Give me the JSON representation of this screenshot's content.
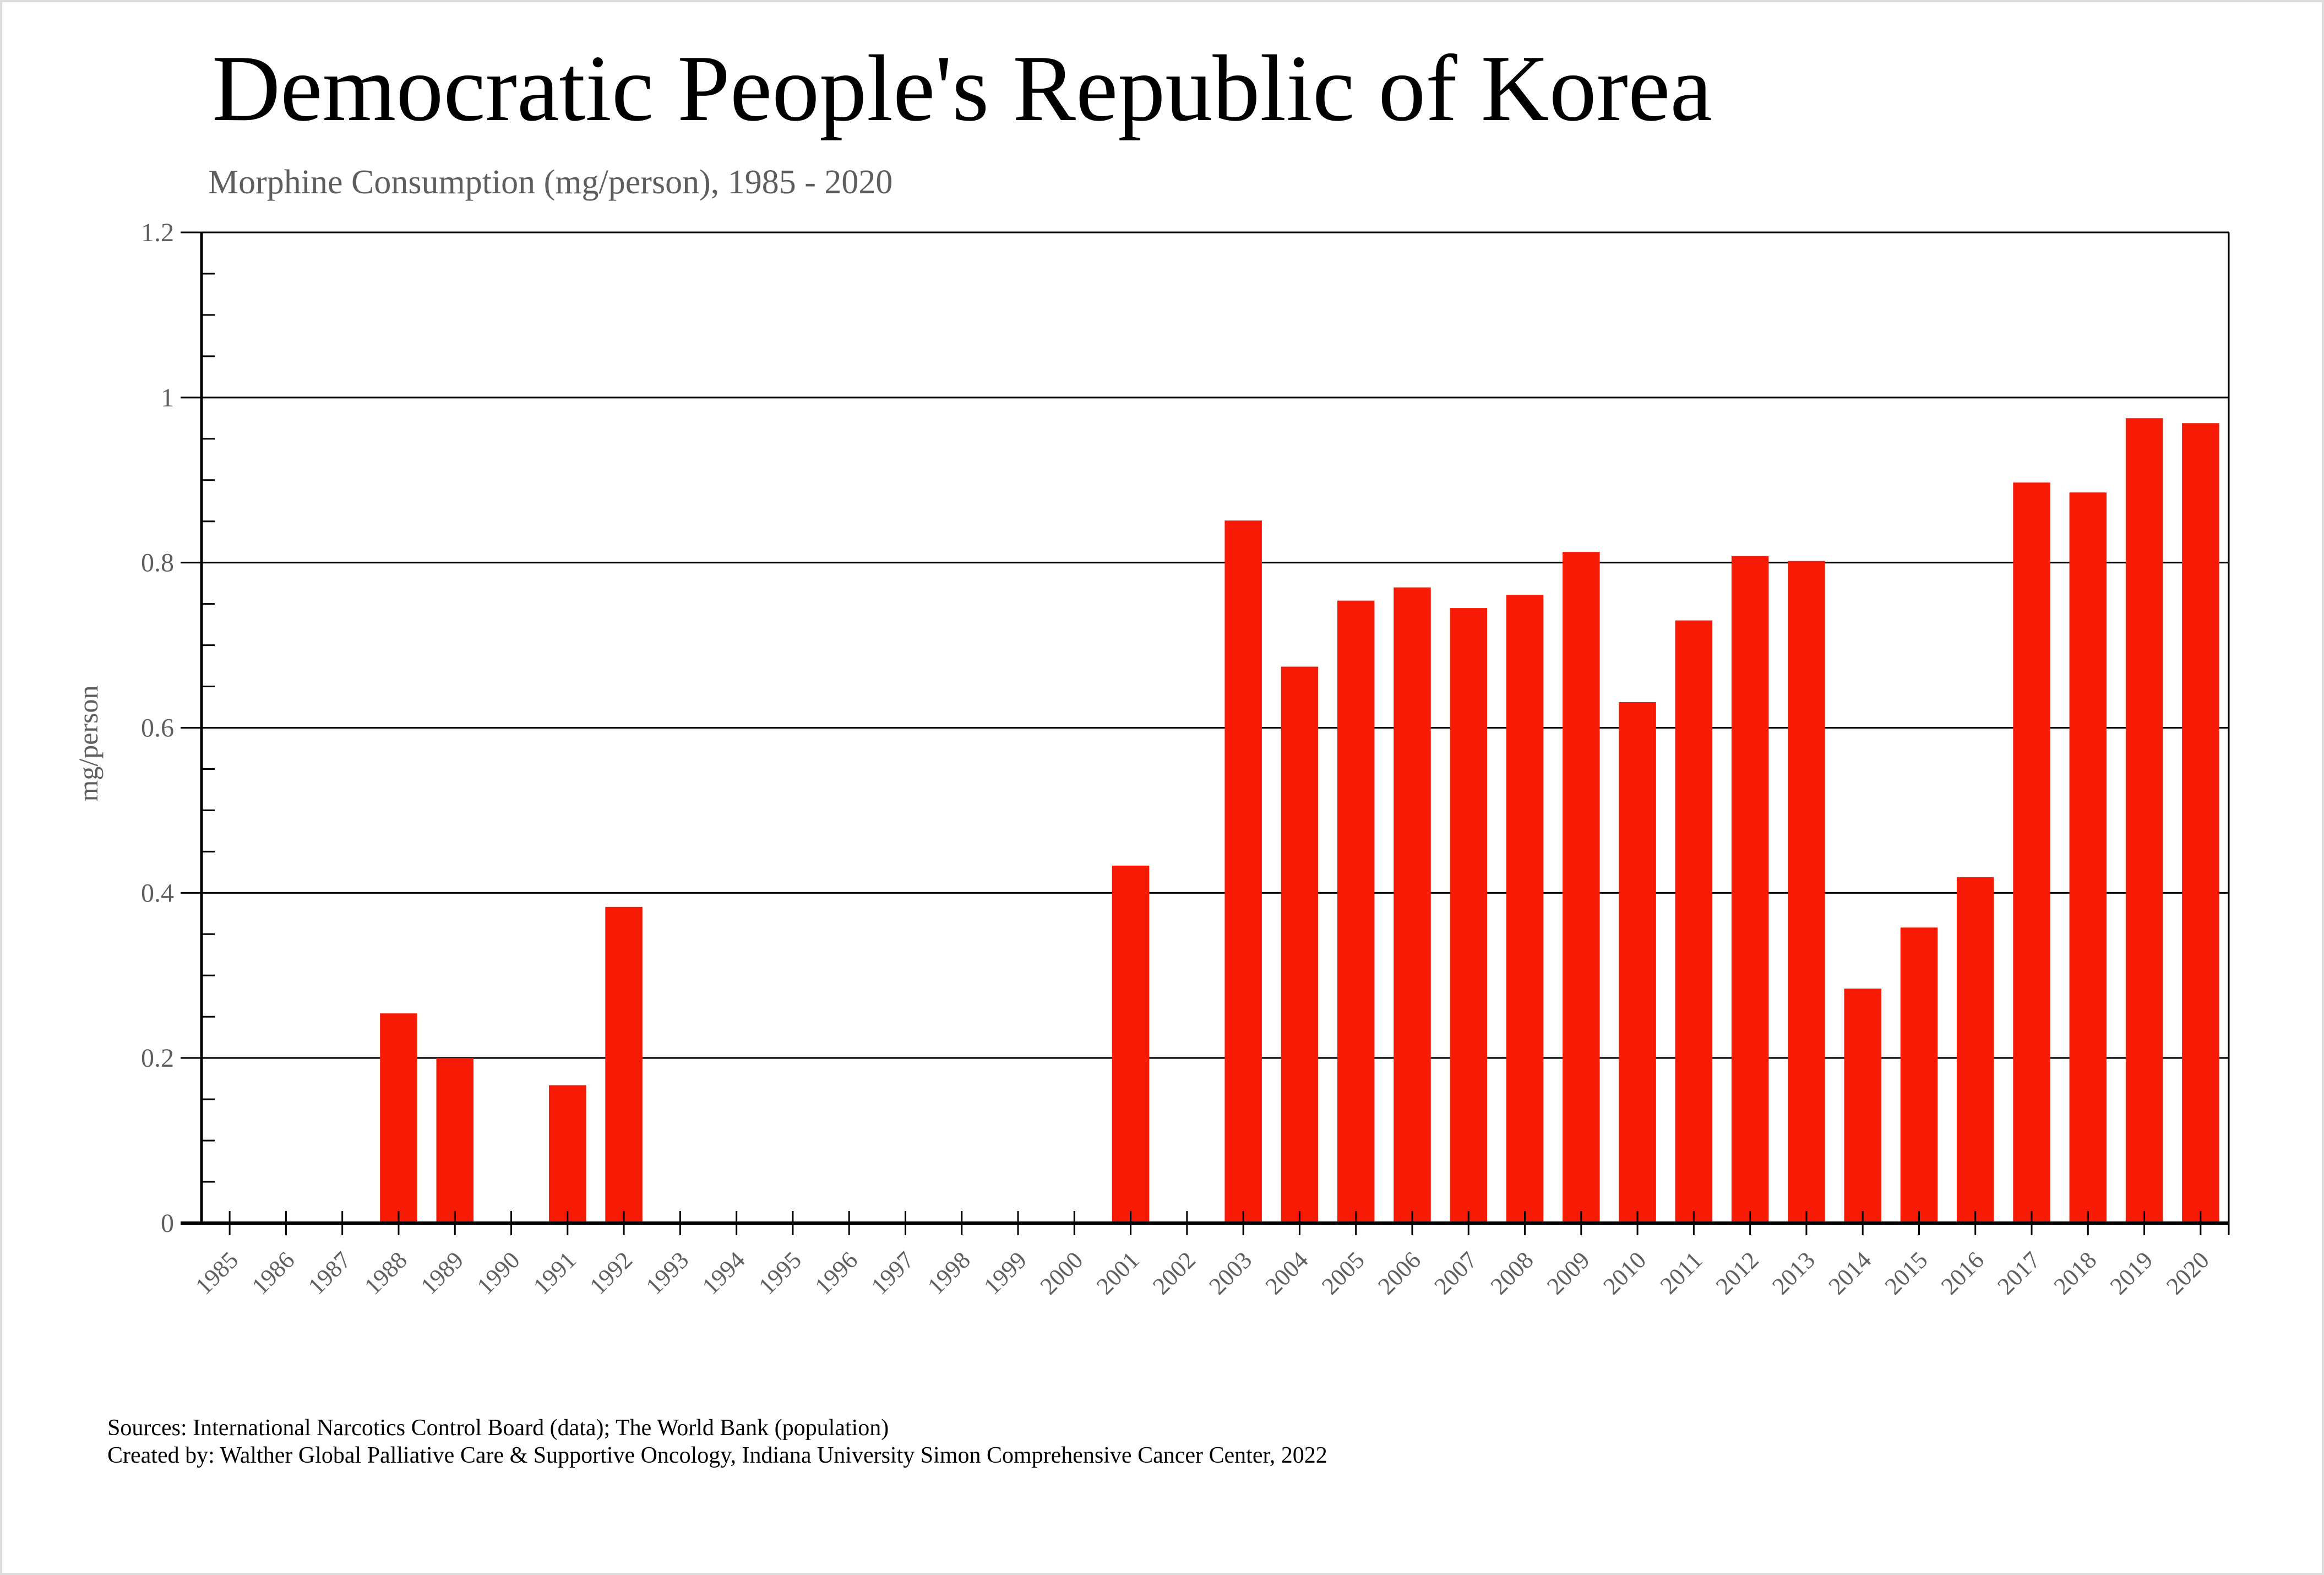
{
  "chart_data": {
    "type": "bar",
    "title": "Democratic People's Republic of Korea",
    "subtitle": "Morphine Consumption (mg/person), 1985 - 2020",
    "xlabel": "",
    "ylabel": "mg/person",
    "ylim": [
      0,
      1.2
    ],
    "yticks": [
      "0",
      "0.2",
      "0.4",
      "0.6",
      "0.8",
      "1",
      "1.2"
    ],
    "grid": true,
    "bar_color": "#f71b05",
    "categories": [
      "1985",
      "1986",
      "1987",
      "1988",
      "1989",
      "1990",
      "1991",
      "1992",
      "1993",
      "1994",
      "1995",
      "1996",
      "1997",
      "1998",
      "1999",
      "2000",
      "2001",
      "2002",
      "2003",
      "2004",
      "2005",
      "2006",
      "2007",
      "2008",
      "2009",
      "2010",
      "2011",
      "2012",
      "2013",
      "2014",
      "2015",
      "2016",
      "2017",
      "2018",
      "2019",
      "2020"
    ],
    "values": [
      0,
      0,
      0,
      0.254,
      0.2,
      0,
      0.167,
      0.383,
      0,
      0,
      0,
      0,
      0,
      0,
      0,
      0,
      0.433,
      0,
      0.851,
      0.674,
      0.754,
      0.77,
      0.745,
      0.761,
      0.813,
      0.631,
      0.73,
      0.808,
      0.802,
      0.284,
      0.358,
      0.419,
      0.897,
      0.885,
      0.975,
      0.969
    ]
  },
  "footer": {
    "sources": "Sources: International Narcotics Control Board (data); The World Bank (population)",
    "created_by": "Created by: Walther  Global Palliative Care & Supportive Oncology, Indiana University Simon Comprehensive Cancer Center, 2022"
  }
}
